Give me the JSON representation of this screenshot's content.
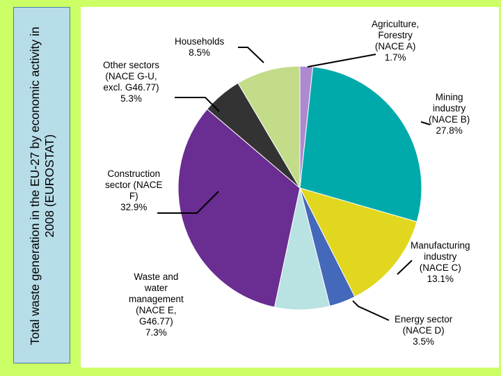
{
  "title": "Total waste generation in the EU-27 by economic activity in 2008 (EUROSTAT)",
  "colors": {
    "background": "#ccff66",
    "title_box": "#b7dde8",
    "panel": "#ffffff"
  },
  "chart_data": {
    "type": "pie",
    "title": "Total waste generation in the EU-27 by economic activity in 2008 (EUROSTAT)",
    "start_angle_deg": 0,
    "direction": "clockwise",
    "slices": [
      {
        "name": "Agriculture, Forestry (NACE A)",
        "value": 1.7,
        "color": "#ad8ad0",
        "label_lines": [
          "Agriculture,",
          "Forestry",
          "(NACE A)",
          "1.7%"
        ]
      },
      {
        "name": "Mining industry (NACE B)",
        "value": 27.8,
        "color": "#00aaaa",
        "label_lines": [
          "Mining",
          "industry",
          "(NACE B)",
          "27.8%"
        ]
      },
      {
        "name": "Manufacturing industry (NACE C)",
        "value": 13.1,
        "color": "#e1d71f",
        "label_lines": [
          "Manufacturing",
          "industry",
          "(NACE C)",
          "13.1%"
        ]
      },
      {
        "name": "Energy sector (NACE D)",
        "value": 3.5,
        "color": "#4468ba",
        "label_lines": [
          "Energy sector",
          "(NACE D)",
          "3.5%"
        ]
      },
      {
        "name": "Waste and water management (NACE E, G46.77)",
        "value": 7.3,
        "color": "#b9e2e2",
        "label_lines": [
          "Waste and",
          "water",
          "management",
          "(NACE E,",
          "G46.77)",
          "7.3%"
        ]
      },
      {
        "name": "Construction sector (NACE F)",
        "value": 32.9,
        "color": "#6a2d91",
        "label_lines": [
          "Construction",
          "sector (NACE",
          "F)",
          "32.9%"
        ]
      },
      {
        "name": "Other sectors (NACE G-U, excl. G46.77)",
        "value": 5.3,
        "color": "#333333",
        "label_lines": [
          "Other sectors",
          "(NACE G-U,",
          "excl. G46.77)",
          "5.3%"
        ]
      },
      {
        "name": "Households",
        "value": 8.5,
        "color": "#c2dc8a",
        "label_lines": [
          "Households",
          "8.5%"
        ]
      }
    ]
  }
}
